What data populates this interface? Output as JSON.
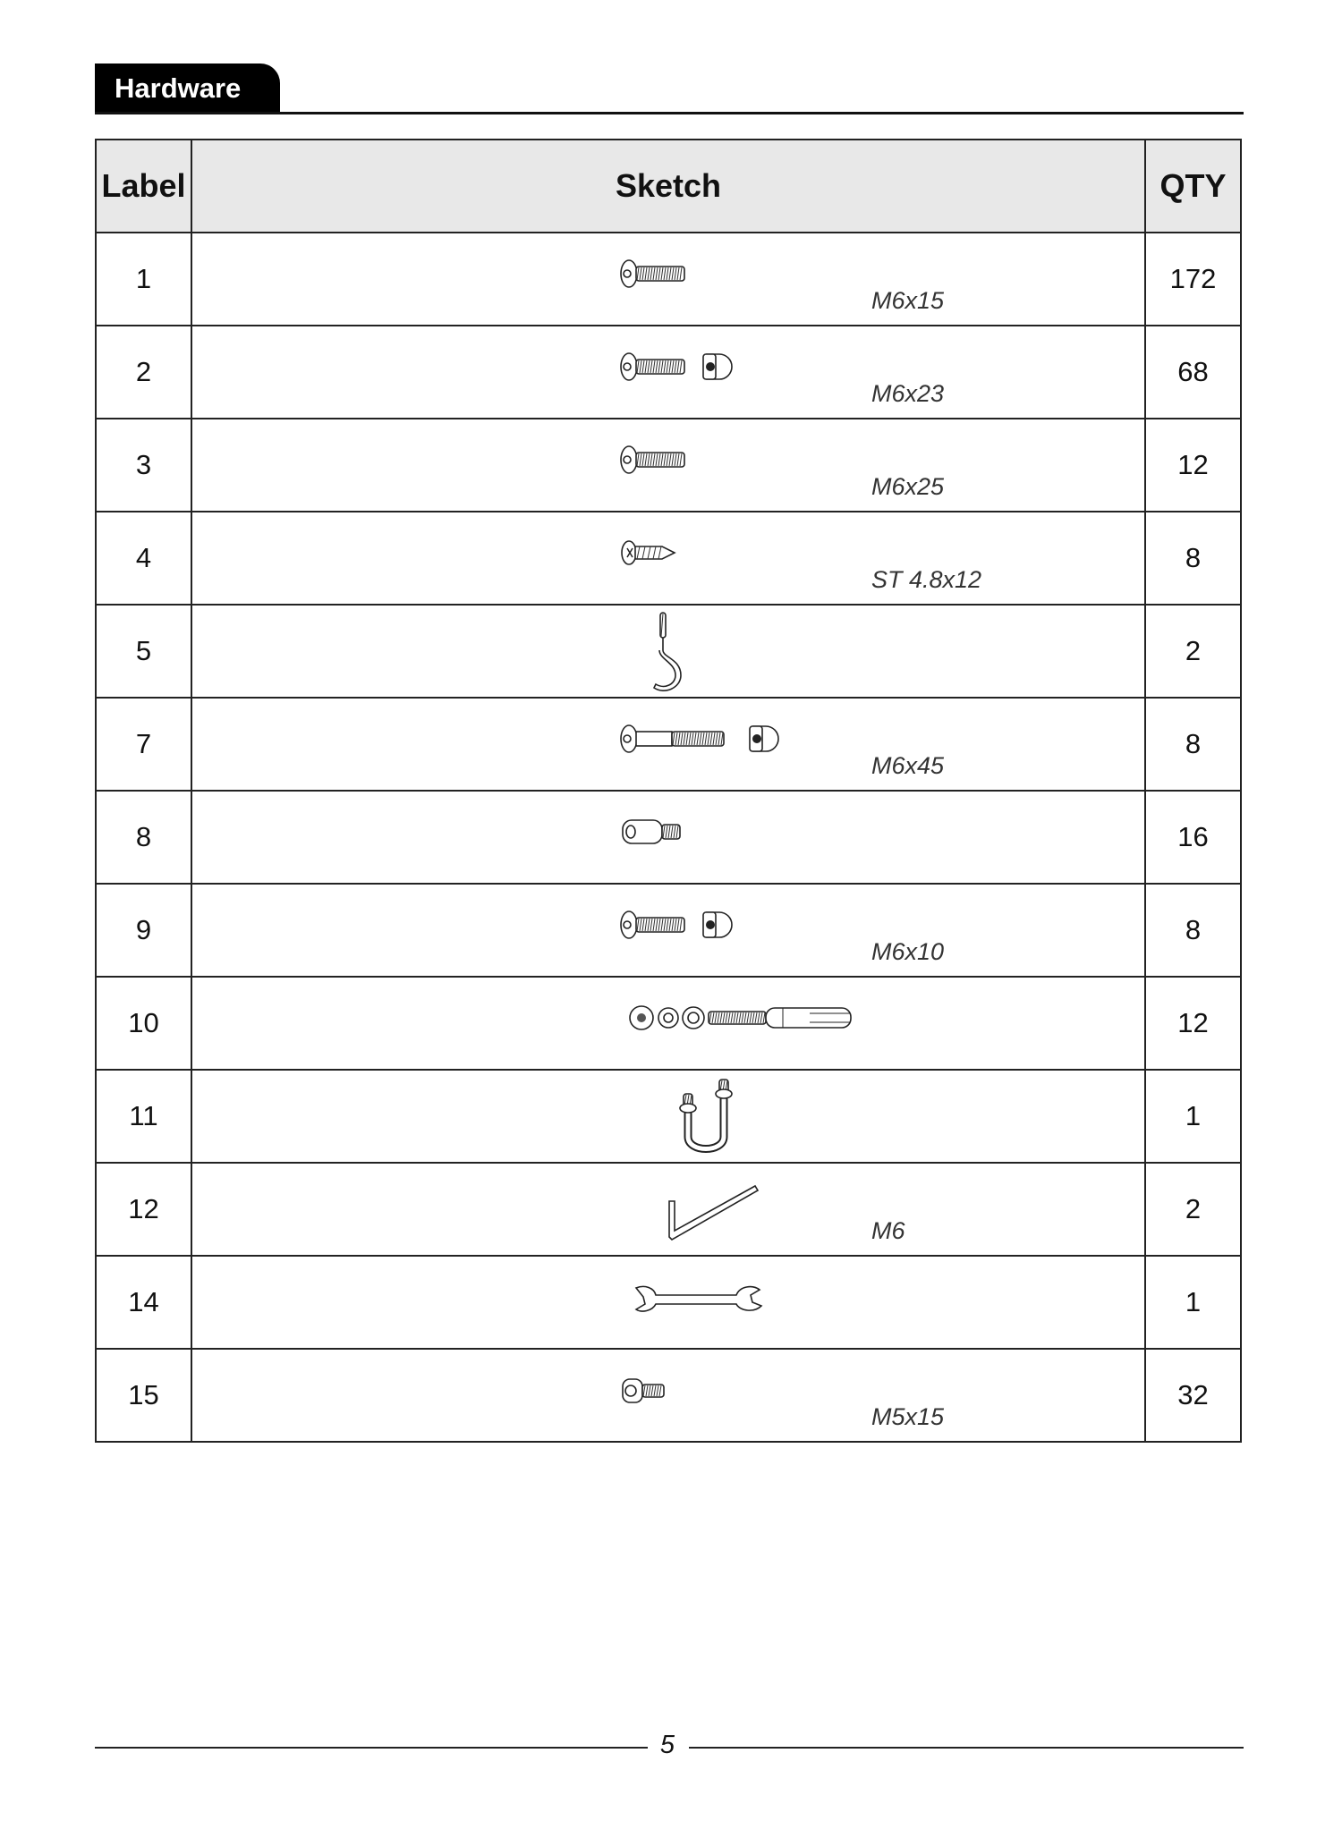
{
  "section_title": "Hardware",
  "table": {
    "headers": {
      "label": "Label",
      "sketch": "Sketch",
      "qty": "QTY"
    },
    "rows": [
      {
        "label": "1",
        "spec": "M6x15",
        "qty": "172",
        "icon": "button-bolt-icon"
      },
      {
        "label": "2",
        "spec": "M6x23",
        "qty": "68",
        "icon": "button-bolt-with-cap-nut-icon"
      },
      {
        "label": "3",
        "spec": "M6x25",
        "qty": "12",
        "icon": "button-bolt-icon"
      },
      {
        "label": "4",
        "spec": "ST 4.8x12",
        "qty": "8",
        "icon": "self-tapping-screw-icon"
      },
      {
        "label": "5",
        "spec": "",
        "qty": "2",
        "icon": "hook-icon"
      },
      {
        "label": "7",
        "spec": "M6x45",
        "qty": "8",
        "icon": "long-bolt-with-cap-nut-icon"
      },
      {
        "label": "8",
        "spec": "",
        "qty": "16",
        "icon": "standoff-icon"
      },
      {
        "label": "9",
        "spec": "M6x10",
        "qty": "8",
        "icon": "button-bolt-with-cap-nut-icon"
      },
      {
        "label": "10",
        "spec": "",
        "qty": "12",
        "icon": "expansion-bolt-set-icon"
      },
      {
        "label": "11",
        "spec": "",
        "qty": "1",
        "icon": "u-bolt-icon"
      },
      {
        "label": "12",
        "spec": "M6",
        "qty": "2",
        "icon": "allen-key-icon"
      },
      {
        "label": "14",
        "spec": "",
        "qty": "1",
        "icon": "wrench-icon"
      },
      {
        "label": "15",
        "spec": "M5x15",
        "qty": "32",
        "icon": "socket-bolt-icon"
      }
    ]
  },
  "page_number": "5"
}
